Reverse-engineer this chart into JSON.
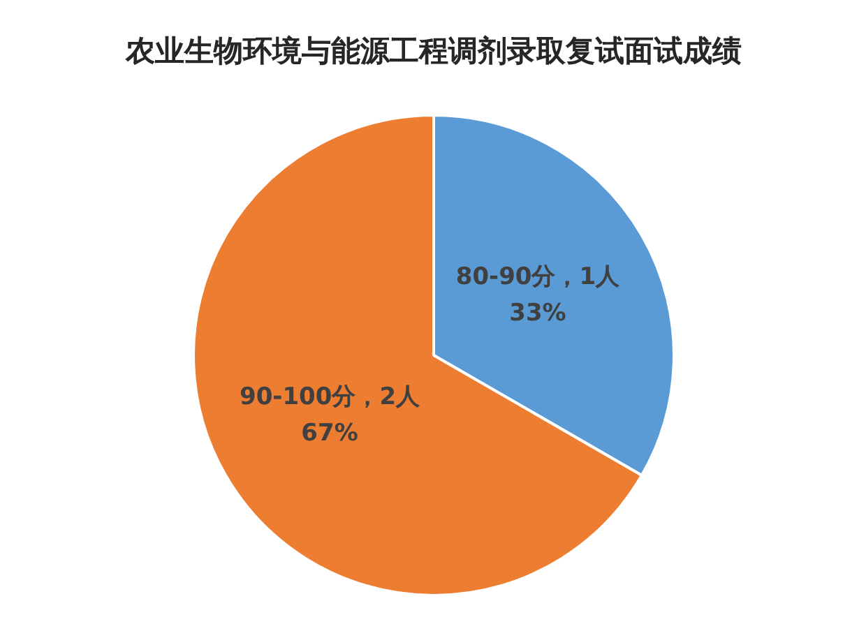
{
  "chart_data": {
    "type": "pie",
    "title": "农业生物环境与能源工程调剂录取复试面试成绩",
    "categories": [
      "80-90分",
      "90-100分"
    ],
    "values": [
      1,
      2
    ],
    "colors": [
      "#5b9bd5",
      "#ed7d31"
    ],
    "value_labels": [
      "，1人\n33%",
      "，2人\n67%"
    ]
  }
}
